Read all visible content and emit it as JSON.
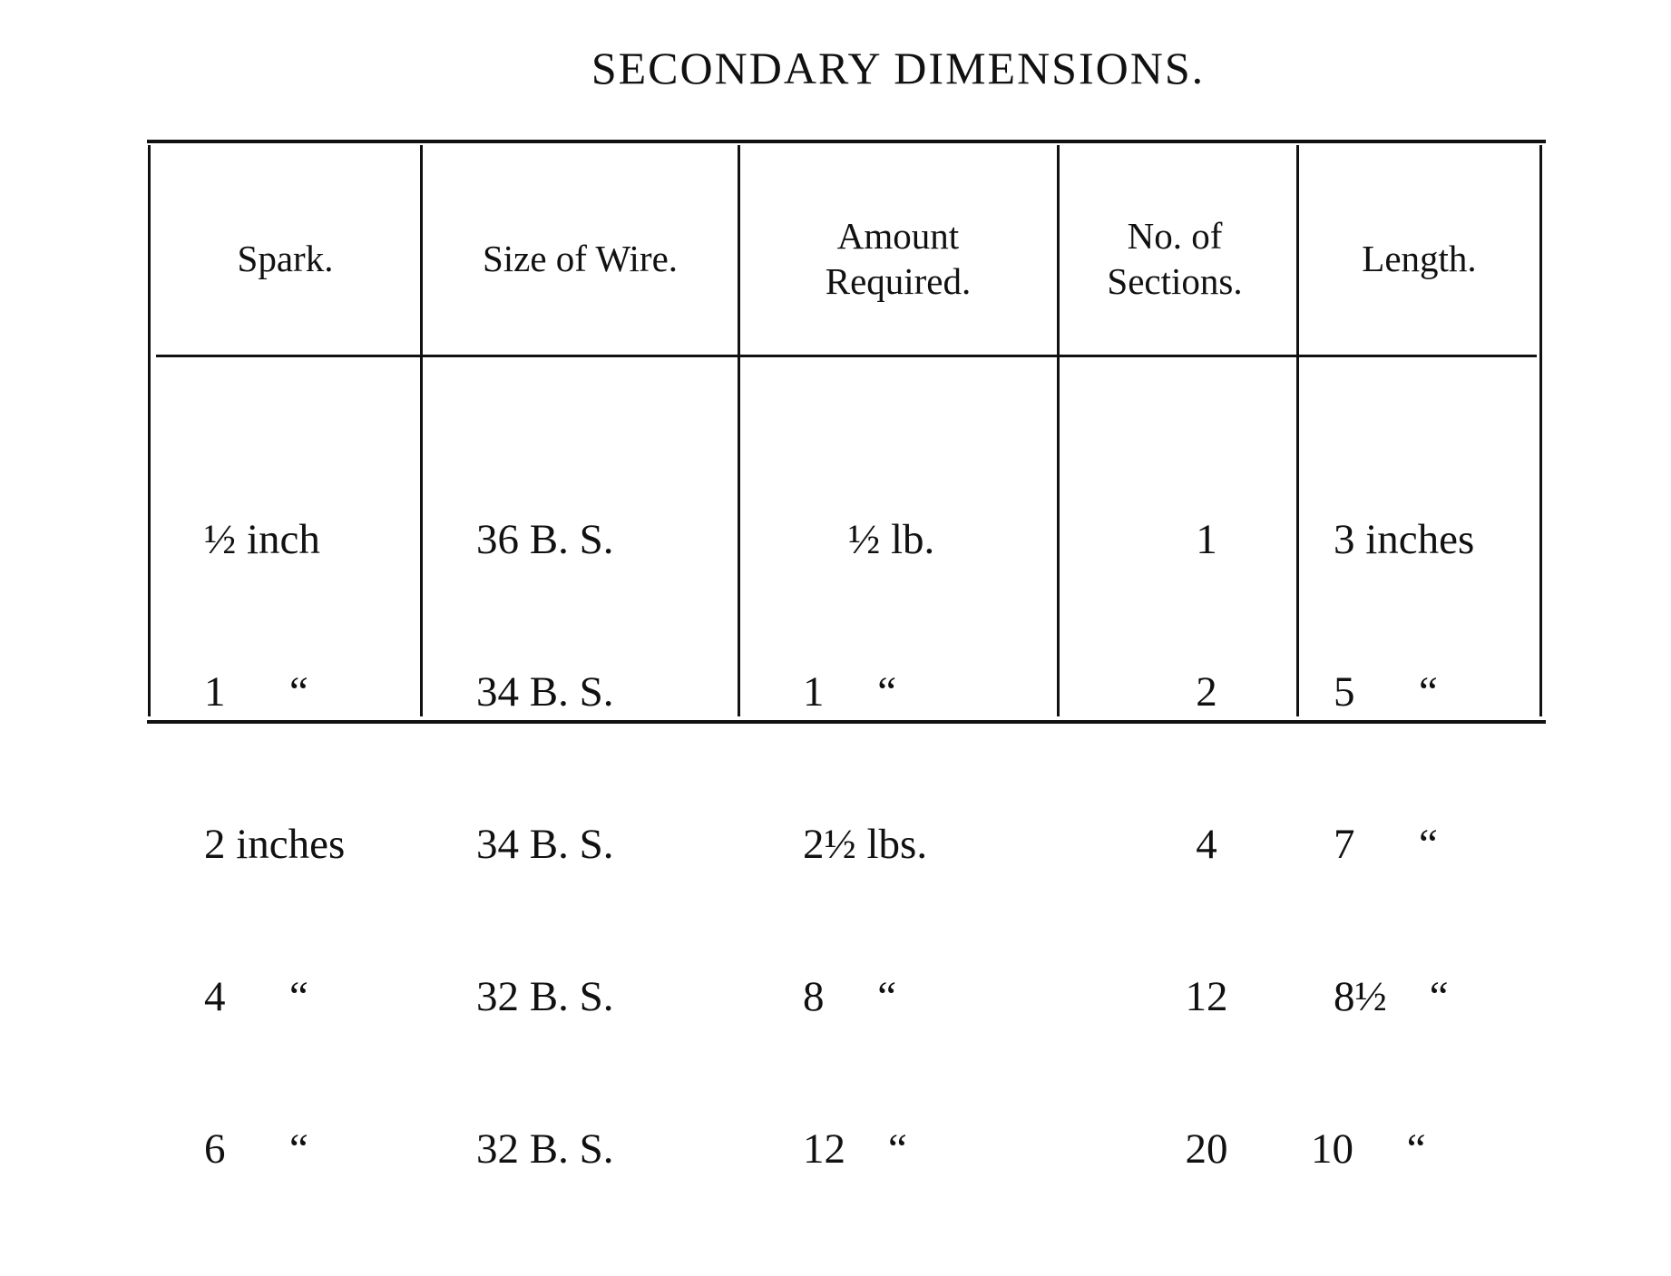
{
  "title": "SECONDARY DIMENSIONS.",
  "table": {
    "headers": [
      "Spark.",
      "Size of Wire.",
      "Amount Required.",
      "No. of Sections.",
      "Length."
    ],
    "rows": [
      [
        "½ inch",
        "36 B. S.",
        "½ lb.",
        "1",
        "3 inches"
      ],
      [
        "1      “",
        "34 B. S.",
        "1     “",
        "2",
        "5      “"
      ],
      [
        "2 inches",
        "34 B. S.",
        "2½ lbs.",
        "4",
        "7      “"
      ],
      [
        "4      “",
        "32 B. S.",
        "8     “",
        "12",
        "8½    “"
      ],
      [
        "6      “",
        "32 B. S.",
        "12    “",
        "20",
        "10     “"
      ]
    ]
  }
}
